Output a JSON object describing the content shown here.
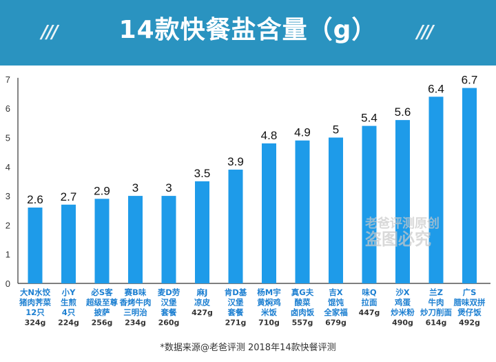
{
  "title": "14款快餐盐含量（g）",
  "source": "*数据来源@老爸评测 2018年14款快餐评测",
  "watermark": [
    "老爸评测原创",
    "盗图必究"
  ],
  "colors": {
    "header": "#2a93c0",
    "bar": "#1e9be9",
    "label": "#1c7fd1"
  },
  "chart_data": {
    "type": "bar",
    "categories": [
      [
        "大N水饺",
        "猪肉荠菜",
        "12只",
        "324g"
      ],
      [
        "小Y",
        "生煎",
        "4只",
        "224g"
      ],
      [
        "必S客",
        "超级至尊",
        "披萨",
        "256g"
      ],
      [
        "赛B味",
        "香烤牛肉",
        "三明治",
        "234g"
      ],
      [
        "麦D劳",
        "汉堡",
        "套餐",
        "260g"
      ],
      [
        "麻J",
        "凉皮",
        "427g"
      ],
      [
        "肯D基",
        "汉堡",
        "套餐",
        "271g"
      ],
      [
        "杨M宇",
        "黄焖鸡",
        "米饭",
        "710g"
      ],
      [
        "真G夫",
        "酸菜",
        "卤肉饭",
        "557g"
      ],
      [
        "吉X",
        "馄饨",
        "全家福",
        "679g"
      ],
      [
        "味Q",
        "拉面",
        "447g"
      ],
      [
        "沙X",
        "鸡蛋",
        "炒米粉",
        "490g"
      ],
      [
        "兰Z",
        "牛肉",
        "炒刀削面",
        "614g"
      ],
      [
        "广S",
        "腊味双拼",
        "煲仔饭",
        "492g"
      ]
    ],
    "values": [
      2.6,
      2.7,
      2.9,
      3,
      3,
      3.5,
      3.9,
      4.8,
      4.9,
      5,
      5.4,
      5.6,
      6.4,
      6.7
    ],
    "value_labels": [
      "2.6",
      "2.7",
      "2.9",
      "3",
      "3",
      "3.5",
      "3.9",
      "4.8",
      "4.9",
      "5",
      "5.4",
      "5.6",
      "6.4",
      "6.7"
    ],
    "yticks": [
      "0",
      "1",
      "2",
      "3",
      "4",
      "5",
      "6",
      "7"
    ],
    "ylim": [
      0,
      7
    ],
    "grid": false
  }
}
